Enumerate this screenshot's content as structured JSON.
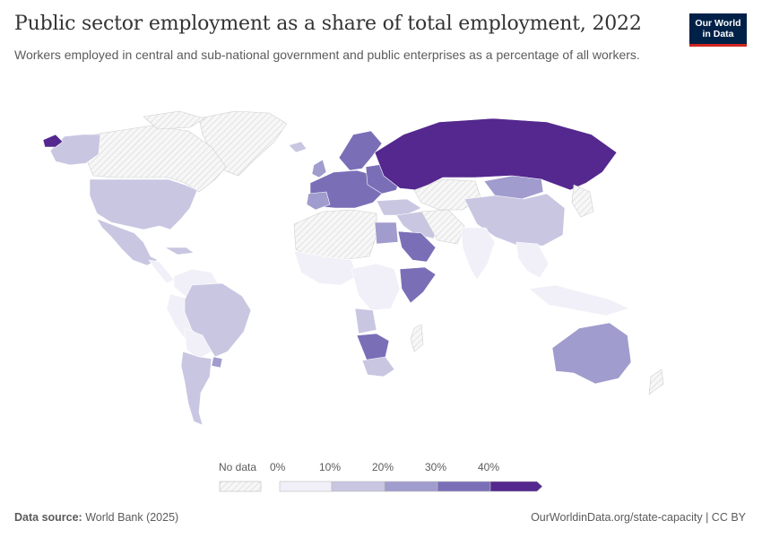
{
  "header": {
    "title": "Public sector employment as a share of total employment, 2022",
    "subtitle": "Workers employed in central and sub-national government and public enterprises as a percentage of all workers."
  },
  "logo": {
    "line1": "Our World",
    "line2": "in Data"
  },
  "legend": {
    "no_data_label": "No data",
    "ticks": [
      "0%",
      "10%",
      "20%",
      "30%",
      "40%"
    ],
    "colors": [
      "#f1f0f8",
      "#c9c6e2",
      "#a09ccd",
      "#7a6fb7",
      "#54288e"
    ],
    "no_data_color": "#f4f4f4"
  },
  "footer": {
    "source_label": "Data source:",
    "source_value": "World Bank (2025)",
    "link": "OurWorldinData.org/state-capacity | CC BY"
  }
}
